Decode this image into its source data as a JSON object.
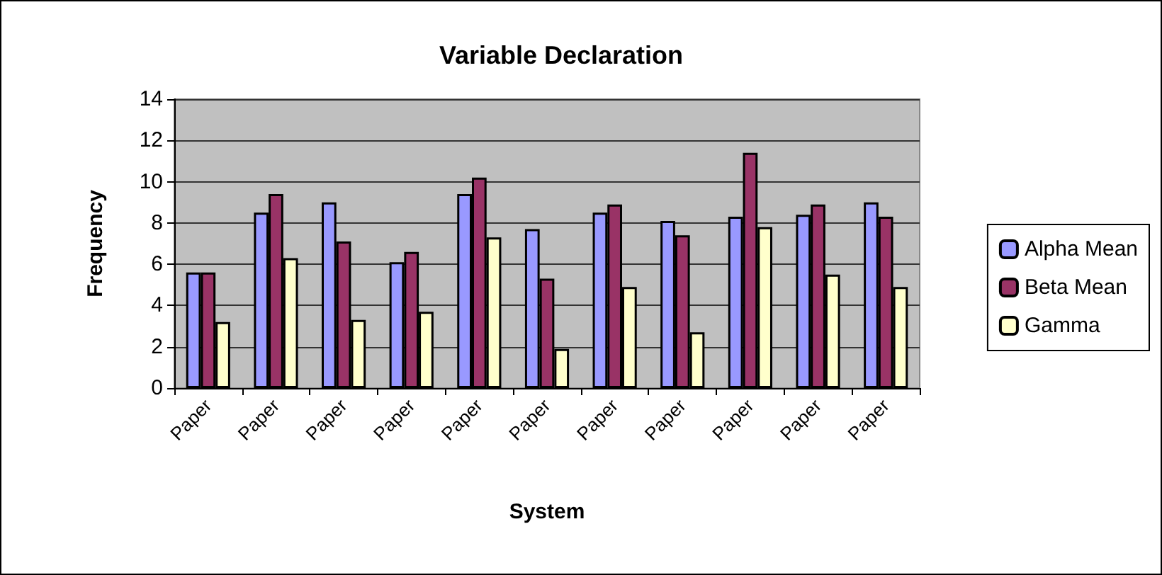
{
  "chart_data": {
    "type": "bar",
    "title": "Variable Declaration",
    "xlabel": "System",
    "ylabel": "Frequency",
    "categories": [
      "Paper",
      "Paper",
      "Paper",
      "Paper",
      "Paper",
      "Paper",
      "Paper",
      "Paper",
      "Paper",
      "Paper",
      "Paper"
    ],
    "series": [
      {
        "name": "Alpha Mean",
        "color": "#9999ff",
        "values": [
          5.6,
          8.5,
          9.0,
          6.1,
          9.4,
          7.7,
          8.5,
          8.1,
          8.3,
          8.4,
          9.0
        ]
      },
      {
        "name": "Beta Mean",
        "color": "#993366",
        "values": [
          5.6,
          9.4,
          7.1,
          6.6,
          10.2,
          5.3,
          8.9,
          7.4,
          11.4,
          8.9,
          8.3
        ]
      },
      {
        "name": "Gamma",
        "color": "#ffffcc",
        "values": [
          3.2,
          6.3,
          3.3,
          3.7,
          7.3,
          1.9,
          4.9,
          2.7,
          7.8,
          5.5,
          4.9
        ]
      }
    ],
    "ylim": [
      0,
      14
    ],
    "yticks": [
      0,
      2,
      4,
      6,
      8,
      10,
      12,
      14
    ],
    "grid": "y",
    "legend": "right"
  }
}
